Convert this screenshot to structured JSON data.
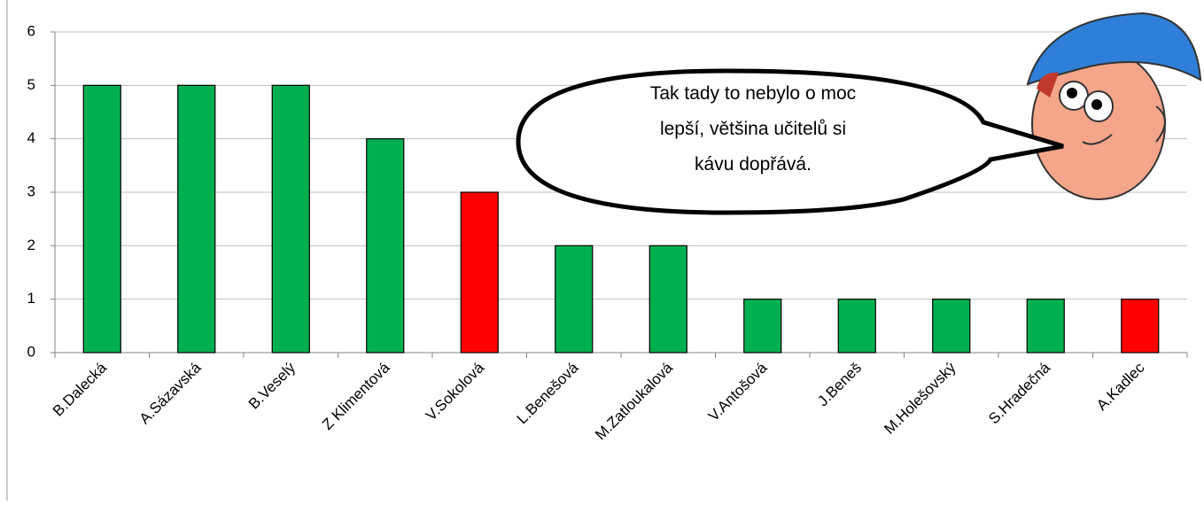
{
  "chart_data": {
    "type": "bar",
    "categories": [
      "B.Dalecká",
      "A.Sázavská",
      "B.Veselý",
      "Z Klimentová",
      "V.Sokolová",
      "L.Benešová",
      "M.Zatloukalová",
      "V.Antošová",
      "J.Beneš",
      "M.Holešovský",
      "S.Hradečná",
      "A.Kadlec"
    ],
    "values": [
      5,
      5,
      5,
      4,
      3,
      2,
      2,
      1,
      1,
      1,
      1,
      1
    ],
    "colors": [
      "#00b050",
      "#00b050",
      "#00b050",
      "#00b050",
      "#ff0000",
      "#00b050",
      "#00b050",
      "#00b050",
      "#00b050",
      "#00b050",
      "#00b050",
      "#ff0000"
    ],
    "ylim": [
      0,
      6
    ],
    "yticks": [
      0,
      1,
      2,
      3,
      4,
      5,
      6
    ],
    "grid": true,
    "annotation": [
      "Tak tady to nebylo o moc",
      "lepší, většina učitelů si",
      "kávu dopřává."
    ]
  }
}
